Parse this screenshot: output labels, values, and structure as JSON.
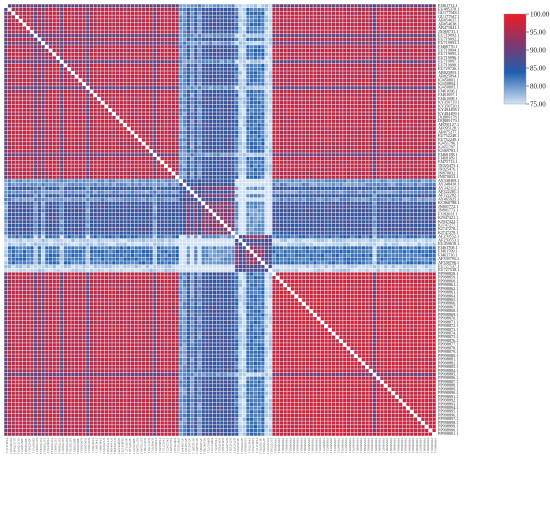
{
  "chart_data": {
    "type": "heatmap",
    "title": "",
    "xlabel": "",
    "ylabel": "",
    "value_range": [
      75,
      100
    ],
    "colorbar": {
      "ticks": [
        100,
        95,
        90,
        85,
        80,
        75
      ],
      "tick_labels": [
        "100.00",
        "95.00",
        "90.00",
        "85.00",
        "80.00",
        "75.00"
      ],
      "colors": [
        "#ed1c24",
        "#7b3a72",
        "#1f5fae",
        "#d2e2f3"
      ],
      "placement": "right"
    },
    "diagonal_value": 100,
    "row_labels": [
      "FJ461713.1",
      "EU485378.1",
      "GU177948.1",
      "GU177947.1",
      "AB054637.1",
      "AB054638.1",
      "AB475841.1",
      "JX069731.1",
      "EU719092.1",
      "EU719092.2",
      "EU719093.1",
      "FJ460770.1",
      "EU719094.1",
      "EU719095.1",
      "EU719096.1",
      "EU719097.1",
      "EU719098.1",
      "EU729726.1",
      "AB025893.1",
      "AB025894.1",
      "KJ450803.1",
      "KJ450804.1",
      "KJ450805.1",
      "FJ461696.1",
      "FJ461697.1",
      "FJ461698.1",
      "KY350719.1",
      "KY350720.1",
      "KY484498.1",
      "KY484499.1",
      "DQ889178.1",
      "DQ889179.1",
      "AF095127.1",
      "AF095128.1",
      "AB075277.1",
      "EU752248.1",
      "EU752249.1",
      "KJ451796.1",
      "KJ451797.1",
      "KJ469781.1",
      "FJ468188.1",
      "FJ468189.1",
      "FJ475713.1",
      "JX025475.1",
      "JX025476.1",
      "JN870032.1",
      "JN870033.1",
      "AY348409.1",
      "AY348410.1",
      "AY342112.1",
      "AF322281.1",
      "AF322282.1",
      "AY465925.1",
      "KC860788.1",
      "JN801772.1",
      "JN801773.1",
      "FJ192031.1",
      "KJ947421.1",
      "KJ947422.1",
      "KJ747277.1",
      "KJ747278.1",
      "KJ747279.1",
      "AF259552.1",
      "AF259553.1",
      "EU459618.1",
      "FJ461708.1",
      "FJ461709.1",
      "FJ461710.1",
      "AF358795.1",
      "AF358796.1",
      "EU727537.1",
      "EU727538.1",
      "PP998858.1",
      "PP998859.1",
      "PP998860.1",
      "PP998861.1",
      "PP998862.1",
      "PP998863.1",
      "PP998864.1",
      "PP998865.1",
      "PP998866.1",
      "PP998867.1",
      "PP998868.1",
      "PP998869.1",
      "PP998870.1",
      "PP998871.1",
      "PP998872.1",
      "PP998873.1",
      "PP998874.1",
      "PP998875.1",
      "PP998876.1",
      "PP998877.1",
      "PP998878.1",
      "PP998879.1",
      "PP998880.1",
      "PP998881.1",
      "PP998882.1",
      "PP998883.1",
      "PP998884.1",
      "PP998885.1",
      "PP998886.1",
      "PP998887.1",
      "PP998888.1",
      "PP998889.1",
      "PP998890.1",
      "PP998891.1",
      "PP998892.1",
      "PP998893.1",
      "PP998894.1",
      "PP998895.1",
      "PP998896.1",
      "PP998897.1",
      "PP998898.1",
      "PP998899.1",
      "PP998900.1",
      "PP998901.1"
    ],
    "groups": [
      {
        "start": 0,
        "end": 47,
        "color": "#d24c5c"
      },
      {
        "start": 47,
        "end": 62,
        "color": "#6d72a8"
      },
      {
        "start": 62,
        "end": 72,
        "color": "#3a6cb4"
      },
      {
        "start": 72,
        "end": 116,
        "color": "#ee2a33"
      }
    ],
    "block_values": [
      [
        96,
        86,
        82,
        96
      ],
      [
        86,
        92,
        80,
        86
      ],
      [
        82,
        80,
        93,
        82
      ],
      [
        96,
        86,
        82,
        97
      ]
    ],
    "low_rows": [
      0,
      8,
      10,
      15,
      22,
      40,
      47,
      48,
      50,
      52,
      63,
      64,
      70,
      71,
      99
    ]
  }
}
